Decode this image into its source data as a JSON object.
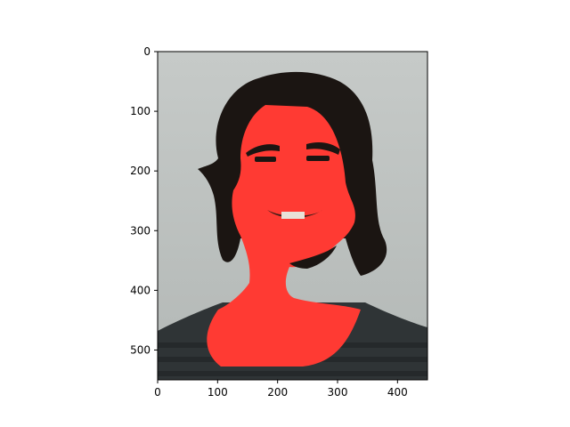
{
  "figure": {
    "image_extent": {
      "x": [
        0,
        450
      ],
      "y": [
        550,
        0
      ]
    },
    "x_ticks": [
      0,
      100,
      200,
      300,
      400
    ],
    "y_ticks": [
      0,
      100,
      200,
      300,
      400,
      500
    ],
    "x_tick_labels": [
      "0",
      "100",
      "200",
      "300",
      "400"
    ],
    "y_tick_labels": [
      "0",
      "100",
      "200",
      "300",
      "400",
      "500"
    ],
    "colors": {
      "background": "#bfc3c1",
      "skin_mask": "#ff3a33",
      "hair": "#1b1512",
      "shirt": "#2f3436",
      "axis": "#000000"
    }
  }
}
